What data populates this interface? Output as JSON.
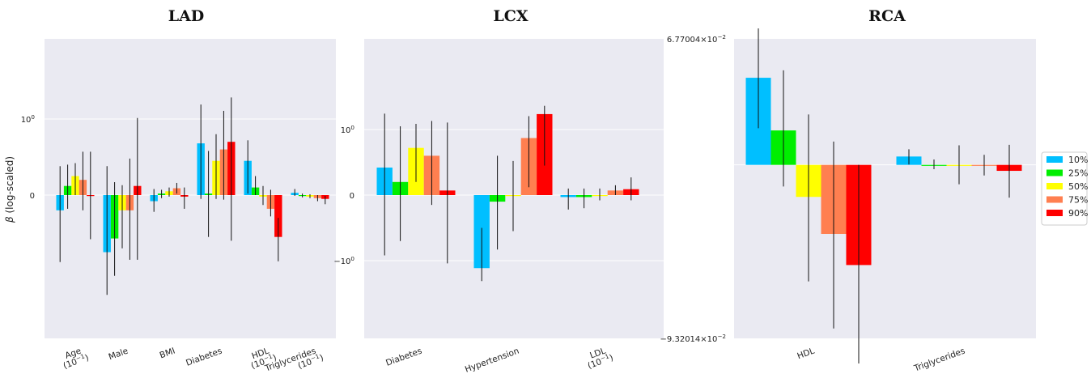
{
  "chart_data": [
    {
      "type": "bar",
      "title": "LAD",
      "ylabel": "β (log-scaled)",
      "yscale": "symlog",
      "yticks": [
        "10^0",
        "0"
      ],
      "categories": [
        "Age (10^-1)",
        "Male",
        "BMI",
        "Diabetes",
        "HDL (10^-1)",
        "Triglycerides (10^-1)"
      ],
      "series": [
        {
          "name": "10%",
          "values": [
            -0.2,
            -0.75,
            -0.08,
            0.68,
            0.45,
            0.03
          ],
          "err_low": [
            -0.88,
            -2.05,
            -0.22,
            -0.05,
            0.02,
            -0.01
          ],
          "err_high": [
            0.38,
            0.38,
            0.08,
            1.55,
            0.72,
            0.08
          ]
        },
        {
          "name": "25%",
          "values": [
            0.12,
            -0.57,
            0.02,
            0.02,
            0.1,
            -0.01
          ],
          "err_low": [
            -0.18,
            -1.15,
            -0.04,
            -0.55,
            0.0,
            -0.03
          ],
          "err_high": [
            0.4,
            0.17,
            0.07,
            0.58,
            0.25,
            0.02
          ]
        },
        {
          "name": "50%",
          "values": [
            0.25,
            -0.2,
            0.05,
            0.45,
            -0.02,
            -0.02
          ],
          "err_low": [
            0.0,
            -0.7,
            -0.02,
            -0.05,
            -0.13,
            -0.04
          ],
          "err_high": [
            0.42,
            0.13,
            0.1,
            0.8,
            0.12,
            0.01
          ]
        },
        {
          "name": "75%",
          "values": [
            0.2,
            -0.2,
            0.09,
            0.6,
            -0.18,
            -0.04
          ],
          "err_low": [
            -0.2,
            -0.85,
            0.02,
            -0.06,
            -0.28,
            -0.08
          ],
          "err_high": [
            0.57,
            0.48,
            0.16,
            1.28,
            0.07,
            0.0
          ]
        },
        {
          "name": "90%",
          "values": [
            -0.01,
            0.12,
            -0.02,
            0.7,
            -0.55,
            -0.05
          ],
          "err_low": [
            -0.58,
            -0.85,
            -0.18,
            -0.6,
            -0.87,
            -0.12
          ],
          "err_high": [
            0.57,
            1.03,
            0.1,
            1.92,
            -0.3,
            -0.01
          ]
        }
      ]
    },
    {
      "type": "bar",
      "title": "LCX",
      "yscale": "symlog",
      "yticks": [
        "10^0",
        "0",
        "-10^0"
      ],
      "categories": [
        "Diabetes",
        "Hypertension",
        "LDL (10^-1)"
      ],
      "series": [
        {
          "name": "10%",
          "values": [
            0.42,
            -1.3,
            -0.03
          ],
          "err_low": [
            -0.92,
            -2.05,
            -0.22
          ],
          "err_high": [
            1.75,
            -0.5,
            0.1
          ]
        },
        {
          "name": "25%",
          "values": [
            0.2,
            -0.1,
            -0.03
          ],
          "err_low": [
            -0.7,
            -0.83,
            -0.2
          ],
          "err_high": [
            1.12,
            0.6,
            0.1
          ]
        },
        {
          "name": "50%",
          "values": [
            0.72,
            0.0,
            0.0
          ],
          "err_low": [
            0.2,
            -0.55,
            -0.08
          ],
          "err_high": [
            1.22,
            0.52,
            0.1
          ]
        },
        {
          "name": "75%",
          "values": [
            0.6,
            0.87,
            0.07
          ],
          "err_low": [
            -0.15,
            0.12,
            0.0
          ],
          "err_high": [
            1.35,
            1.6,
            0.15
          ]
        },
        {
          "name": "90%",
          "values": [
            0.07,
            1.72,
            0.09
          ],
          "err_low": [
            -1.1,
            0.45,
            -0.08
          ],
          "err_high": [
            1.28,
            2.3,
            0.27
          ]
        }
      ]
    },
    {
      "type": "bar",
      "title": "RCA",
      "yscale": "linear",
      "ylim": [
        -0.0932014,
        0.0677004
      ],
      "yticks": [
        "6.77004×10^-2",
        "-9.32014×10^-2"
      ],
      "categories": [
        "HDL",
        "Triglycerides"
      ],
      "series": [
        {
          "name": "10%",
          "values": [
            0.0468,
            0.0045
          ],
          "err_low": [
            0.0197,
            0.0002
          ],
          "err_high": [
            0.0733,
            0.0084
          ]
        },
        {
          "name": "25%",
          "values": [
            0.0185,
            -0.0002
          ],
          "err_low": [
            -0.0116,
            -0.0023
          ],
          "err_high": [
            0.0508,
            0.0029
          ]
        },
        {
          "name": "50%",
          "values": [
            -0.0172,
            0.0
          ],
          "err_low": [
            -0.0626,
            -0.0104
          ],
          "err_high": [
            0.0271,
            0.0105
          ]
        },
        {
          "name": "75%",
          "values": [
            -0.0371,
            0.0
          ],
          "err_low": [
            -0.0879,
            -0.0057
          ],
          "err_high": [
            0.0125,
            0.0054
          ]
        },
        {
          "name": "90%",
          "values": [
            -0.0538,
            -0.0032
          ],
          "err_low": [
            -0.1067,
            -0.0176
          ],
          "err_high": [
            0.0,
            0.0108
          ]
        }
      ]
    }
  ],
  "legend": {
    "placement": "right",
    "items": [
      {
        "label": "10%",
        "color": "#00bfff"
      },
      {
        "label": "25%",
        "color": "#00ee00"
      },
      {
        "label": "50%",
        "color": "#ffff00"
      },
      {
        "label": "75%",
        "color": "#ff7f50"
      },
      {
        "label": "90%",
        "color": "#ff0000"
      }
    ]
  }
}
